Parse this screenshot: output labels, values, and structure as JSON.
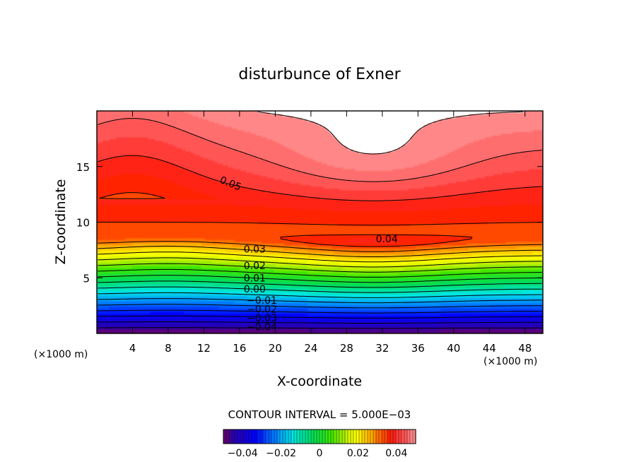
{
  "chart_data": {
    "type": "contour",
    "title": "disturbunce of Exner",
    "xlabel": "X-coordinate",
    "ylabel": "Z-coordinate",
    "x_unit_left": "(×1000 m)",
    "x_unit_right": "(×1000 m)",
    "xlim": [
      0,
      50
    ],
    "ylim": [
      0,
      20
    ],
    "x_ticks": [
      4,
      8,
      12,
      16,
      20,
      24,
      28,
      32,
      36,
      40,
      44,
      48
    ],
    "y_ticks": [
      5,
      10,
      15
    ],
    "x_tick_labels": [
      "4",
      "8",
      "12",
      "16",
      "20",
      "24",
      "28",
      "32",
      "36",
      "40",
      "44",
      "48"
    ],
    "y_tick_labels": [
      "5",
      "10",
      "15"
    ],
    "contour_interval_text": "CONTOUR INTERVAL = 5.000E−03",
    "contour_interval": 0.005,
    "value_range": [
      -0.05,
      0.05
    ],
    "contour_labels": [
      {
        "text": "0.05",
        "x": 15,
        "y": 13.5
      },
      {
        "text": "0.04",
        "x": 32.5,
        "y": 8.5
      },
      {
        "text": "0.03",
        "x": 17.7,
        "y": 7.6
      },
      {
        "text": "0.02",
        "x": 17.7,
        "y": 6.1
      },
      {
        "text": "0.01",
        "x": 17.7,
        "y": 5.0
      },
      {
        "text": "0.00",
        "x": 17.7,
        "y": 4.0
      },
      {
        "text": "−0.01",
        "x": 18.5,
        "y": 3.0
      },
      {
        "text": "−0.02",
        "x": 18.5,
        "y": 2.2
      },
      {
        "text": "−0.03",
        "x": 18.5,
        "y": 1.4
      },
      {
        "text": "−0.04",
        "x": 18.5,
        "y": 0.6
      }
    ],
    "colorbar": {
      "tick_values": [
        -0.04,
        -0.02,
        0,
        0.02,
        0.04
      ],
      "tick_labels": [
        "−0.04",
        "−0.02",
        "0",
        "0.02",
        "0.04"
      ]
    },
    "colors": {
      "white_region": "#ffffff",
      "top_band": "#ff9090",
      "red_band": "#ff0000",
      "orange_band": "#ff8c00",
      "yellow_band": "#ffff00",
      "green_band": "#00e000",
      "cyan_band": "#00ffff",
      "blue_band": "#0000ff",
      "purple_band": "#6a0dad"
    }
  }
}
